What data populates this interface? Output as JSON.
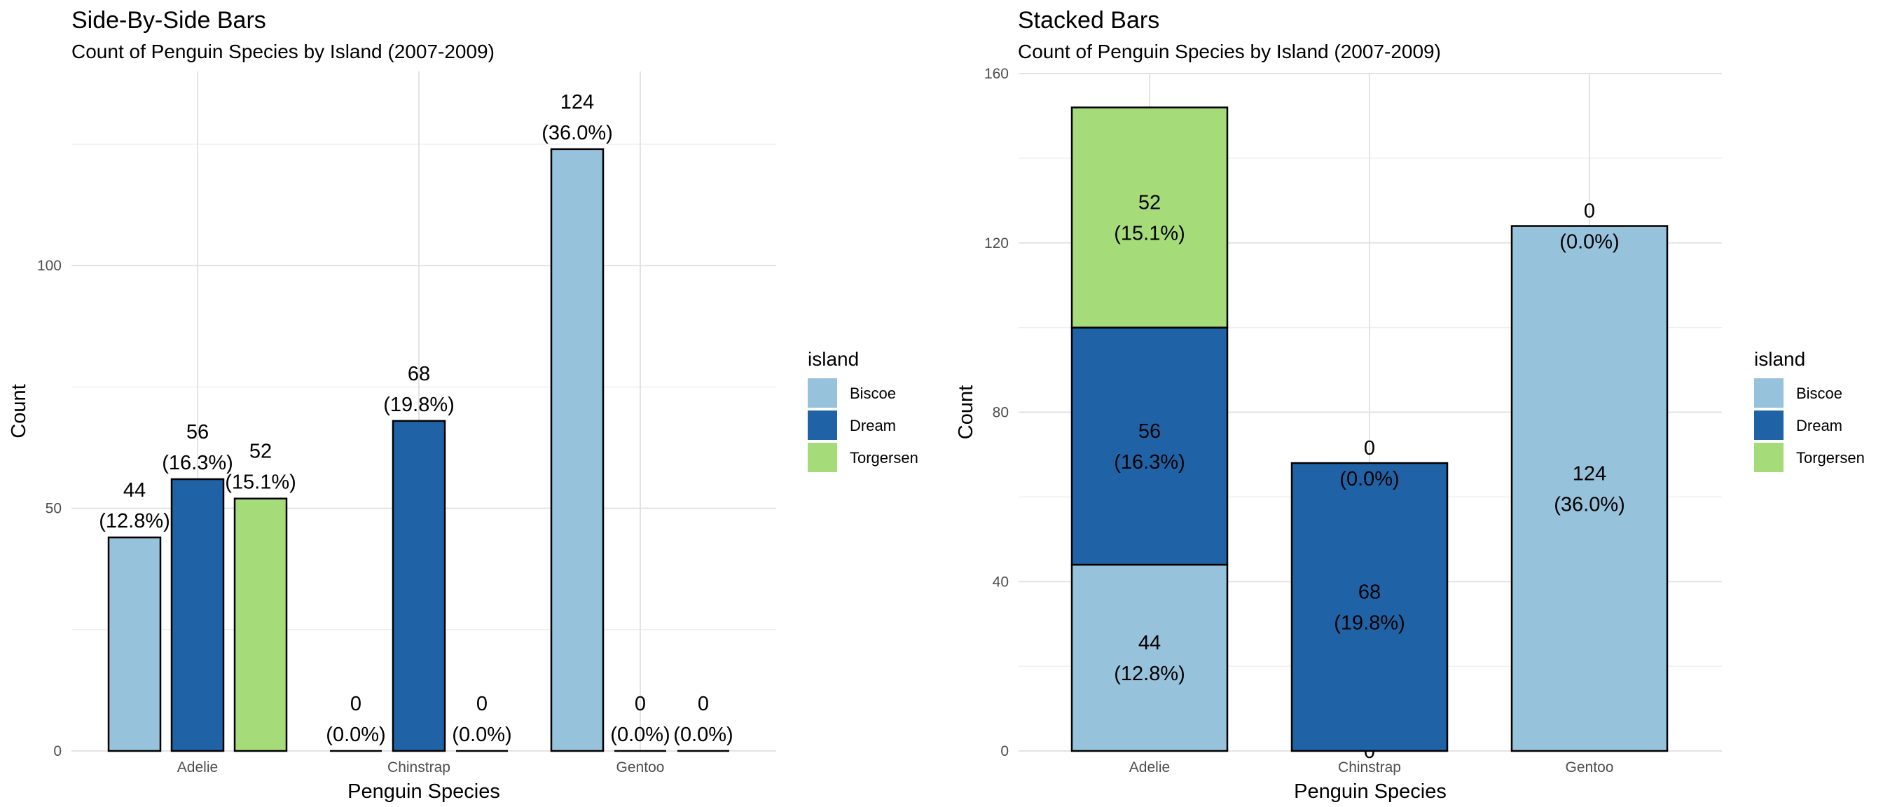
{
  "chart_data": [
    {
      "type": "bar",
      "title": "Side-By-Side Bars",
      "subtitle": "Count of Penguin Species by Island (2007-2009)",
      "xlabel": "Penguin Species",
      "ylabel": "Count",
      "categories": [
        "Adelie",
        "Chinstrap",
        "Gentoo"
      ],
      "series": [
        {
          "name": "Biscoe",
          "values": [
            44,
            0,
            124
          ],
          "labels": [
            "44\n(12.8%)",
            "0\n(0.0%)",
            "124\n(36.0%)"
          ]
        },
        {
          "name": "Dream",
          "values": [
            56,
            68,
            0
          ],
          "labels": [
            "56\n(16.3%)",
            "68\n(19.8%)",
            "0\n(0.0%)"
          ]
        },
        {
          "name": "Torgersen",
          "values": [
            52,
            0,
            0
          ],
          "labels": [
            "52\n(15.1%)",
            "0\n(0.0%)",
            "0\n(0.0%)"
          ]
        }
      ],
      "yticks": [
        0,
        50,
        100
      ],
      "ylim": [
        0,
        140
      ],
      "barmode": "group",
      "grid": true,
      "legend_title": "island",
      "legend_position": "right"
    },
    {
      "type": "bar",
      "title": "Stacked Bars",
      "subtitle": "Count of Penguin Species by Island (2007-2009)",
      "xlabel": "Penguin Species",
      "ylabel": "Count",
      "categories": [
        "Adelie",
        "Chinstrap",
        "Gentoo"
      ],
      "series": [
        {
          "name": "Biscoe",
          "values": [
            44,
            0,
            124
          ],
          "labels": [
            "44\n(12.8%)",
            "0",
            "124\n(36.0%)"
          ]
        },
        {
          "name": "Dream",
          "values": [
            56,
            68,
            0
          ],
          "labels": [
            "56\n(16.3%)",
            "68\n(19.8%)",
            "0\n(0.0%)"
          ]
        },
        {
          "name": "Torgersen",
          "values": [
            52,
            0,
            0
          ],
          "labels": [
            "52\n(15.1%)",
            "0\n(0.0%)",
            ""
          ]
        }
      ],
      "yticks": [
        0,
        40,
        80,
        120,
        160
      ],
      "ylim": [
        0,
        160
      ],
      "barmode": "stack",
      "grid": true,
      "legend_title": "island",
      "legend_position": "right"
    }
  ],
  "colors": {
    "Biscoe": "#97c2dc",
    "Dream": "#1f63a6",
    "Torgersen": "#a5db78"
  }
}
